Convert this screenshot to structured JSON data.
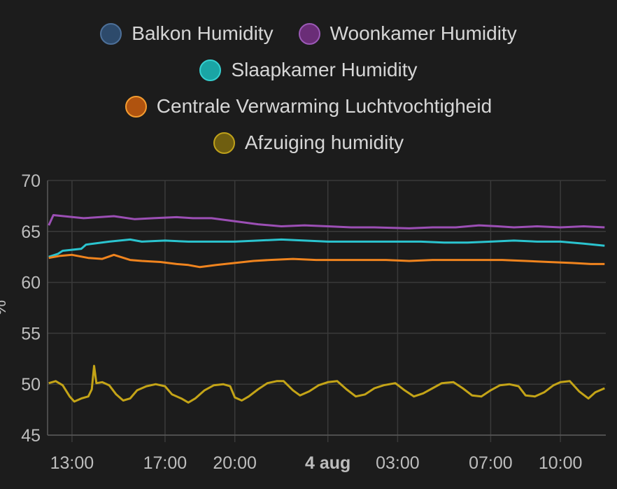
{
  "chart_data": {
    "type": "line",
    "ylabel": "%",
    "ylim": [
      45,
      70
    ],
    "y_ticks": [
      "45",
      "50",
      "55",
      "60",
      "65",
      "70"
    ],
    "x_ticks": [
      {
        "label": "13:00",
        "t": 13.0,
        "bold": false
      },
      {
        "label": "17:00",
        "t": 17.0,
        "bold": false
      },
      {
        "label": "20:00",
        "t": 20.0,
        "bold": false
      },
      {
        "label": "4 aug",
        "t": 24.0,
        "bold": true
      },
      {
        "label": "03:00",
        "t": 27.0,
        "bold": false
      },
      {
        "label": "07:00",
        "t": 31.0,
        "bold": false
      },
      {
        "label": "10:00",
        "t": 34.0,
        "bold": false
      }
    ],
    "x_range_hours": [
      11.95,
      35.95
    ],
    "grid": true,
    "legend_placement": "top-center",
    "series": [
      {
        "name": "Balkon Humidity",
        "color": "#2d4a6b",
        "border": "#4d7099",
        "line": false,
        "points": []
      },
      {
        "name": "Woonkamer Humidity",
        "color": "#6a2d77",
        "border": "#9b59b6",
        "line": "#9c4fb5",
        "points": [
          [
            12.0,
            65.6
          ],
          [
            12.2,
            66.6
          ],
          [
            13.5,
            66.3
          ],
          [
            14.8,
            66.5
          ],
          [
            15.7,
            66.2
          ],
          [
            16.5,
            66.3
          ],
          [
            17.5,
            66.4
          ],
          [
            18.2,
            66.3
          ],
          [
            19.0,
            66.3
          ],
          [
            20.0,
            66.0
          ],
          [
            21.0,
            65.7
          ],
          [
            22.0,
            65.5
          ],
          [
            23.0,
            65.6
          ],
          [
            24.0,
            65.5
          ],
          [
            25.0,
            65.4
          ],
          [
            26.0,
            65.4
          ],
          [
            27.5,
            65.3
          ],
          [
            28.5,
            65.4
          ],
          [
            29.5,
            65.4
          ],
          [
            30.5,
            65.6
          ],
          [
            31.3,
            65.5
          ],
          [
            32.0,
            65.4
          ],
          [
            33.0,
            65.5
          ],
          [
            34.0,
            65.4
          ],
          [
            35.0,
            65.5
          ],
          [
            35.9,
            65.4
          ]
        ]
      },
      {
        "name": "Slaapkamer Humidity",
        "color": "#1aa5a5",
        "border": "#35d0d0",
        "line": "#2bc4cf",
        "points": [
          [
            12.0,
            62.5
          ],
          [
            12.4,
            62.8
          ],
          [
            12.6,
            63.1
          ],
          [
            13.4,
            63.3
          ],
          [
            13.6,
            63.7
          ],
          [
            14.6,
            64.0
          ],
          [
            15.5,
            64.2
          ],
          [
            16.0,
            64.0
          ],
          [
            17.0,
            64.1
          ],
          [
            18.0,
            64.0
          ],
          [
            19.0,
            64.0
          ],
          [
            20.0,
            64.0
          ],
          [
            21.0,
            64.1
          ],
          [
            22.0,
            64.2
          ],
          [
            23.0,
            64.1
          ],
          [
            24.0,
            64.0
          ],
          [
            25.0,
            64.0
          ],
          [
            26.0,
            64.0
          ],
          [
            27.0,
            64.0
          ],
          [
            28.0,
            64.0
          ],
          [
            29.0,
            63.9
          ],
          [
            30.0,
            63.9
          ],
          [
            31.0,
            64.0
          ],
          [
            32.0,
            64.1
          ],
          [
            33.0,
            64.0
          ],
          [
            34.0,
            64.0
          ],
          [
            35.0,
            63.8
          ],
          [
            35.9,
            63.6
          ]
        ]
      },
      {
        "name": "Centrale Verwarming Luchtvochtigheid",
        "color": "#b0530f",
        "border": "#f39c30",
        "line": "#f0841e",
        "points": [
          [
            12.0,
            62.4
          ],
          [
            12.5,
            62.6
          ],
          [
            13.0,
            62.7
          ],
          [
            13.7,
            62.4
          ],
          [
            14.3,
            62.3
          ],
          [
            14.8,
            62.7
          ],
          [
            15.5,
            62.2
          ],
          [
            16.0,
            62.1
          ],
          [
            16.8,
            62.0
          ],
          [
            17.5,
            61.8
          ],
          [
            18.0,
            61.7
          ],
          [
            18.5,
            61.5
          ],
          [
            19.2,
            61.7
          ],
          [
            20.0,
            61.9
          ],
          [
            20.8,
            62.1
          ],
          [
            21.5,
            62.2
          ],
          [
            22.5,
            62.3
          ],
          [
            23.5,
            62.2
          ],
          [
            24.5,
            62.2
          ],
          [
            25.5,
            62.2
          ],
          [
            26.5,
            62.2
          ],
          [
            27.5,
            62.1
          ],
          [
            28.5,
            62.2
          ],
          [
            29.5,
            62.2
          ],
          [
            30.5,
            62.2
          ],
          [
            31.5,
            62.2
          ],
          [
            32.5,
            62.1
          ],
          [
            33.5,
            62.0
          ],
          [
            34.5,
            61.9
          ],
          [
            35.3,
            61.8
          ],
          [
            35.9,
            61.8
          ]
        ]
      },
      {
        "name": "Afzuiging humidity",
        "color": "#6f5e10",
        "border": "#bfa11a",
        "line": "#c4a417",
        "points": [
          [
            12.0,
            50.1
          ],
          [
            12.3,
            50.3
          ],
          [
            12.6,
            49.9
          ],
          [
            12.9,
            48.8
          ],
          [
            13.1,
            48.3
          ],
          [
            13.4,
            48.6
          ],
          [
            13.7,
            48.8
          ],
          [
            13.85,
            49.5
          ],
          [
            13.95,
            51.8
          ],
          [
            14.05,
            50.1
          ],
          [
            14.3,
            50.2
          ],
          [
            14.6,
            49.9
          ],
          [
            14.9,
            49.0
          ],
          [
            15.2,
            48.4
          ],
          [
            15.5,
            48.6
          ],
          [
            15.8,
            49.4
          ],
          [
            16.2,
            49.8
          ],
          [
            16.6,
            50.0
          ],
          [
            17.0,
            49.8
          ],
          [
            17.3,
            49.0
          ],
          [
            17.7,
            48.6
          ],
          [
            18.0,
            48.2
          ],
          [
            18.3,
            48.6
          ],
          [
            18.7,
            49.4
          ],
          [
            19.1,
            49.9
          ],
          [
            19.5,
            50.0
          ],
          [
            19.8,
            49.8
          ],
          [
            20.0,
            48.7
          ],
          [
            20.3,
            48.4
          ],
          [
            20.6,
            48.8
          ],
          [
            21.0,
            49.5
          ],
          [
            21.4,
            50.1
          ],
          [
            21.8,
            50.3
          ],
          [
            22.1,
            50.3
          ],
          [
            22.5,
            49.4
          ],
          [
            22.8,
            48.9
          ],
          [
            23.2,
            49.3
          ],
          [
            23.6,
            49.9
          ],
          [
            24.0,
            50.2
          ],
          [
            24.4,
            50.3
          ],
          [
            24.8,
            49.5
          ],
          [
            25.2,
            48.8
          ],
          [
            25.6,
            49.0
          ],
          [
            26.0,
            49.6
          ],
          [
            26.4,
            49.9
          ],
          [
            26.9,
            50.1
          ],
          [
            27.3,
            49.4
          ],
          [
            27.7,
            48.8
          ],
          [
            28.1,
            49.1
          ],
          [
            28.5,
            49.6
          ],
          [
            28.9,
            50.1
          ],
          [
            29.4,
            50.2
          ],
          [
            29.8,
            49.6
          ],
          [
            30.2,
            48.9
          ],
          [
            30.6,
            48.8
          ],
          [
            31.0,
            49.4
          ],
          [
            31.4,
            49.9
          ],
          [
            31.8,
            50.0
          ],
          [
            32.2,
            49.8
          ],
          [
            32.5,
            48.9
          ],
          [
            32.9,
            48.8
          ],
          [
            33.3,
            49.2
          ],
          [
            33.7,
            49.9
          ],
          [
            34.0,
            50.2
          ],
          [
            34.4,
            50.3
          ],
          [
            34.8,
            49.3
          ],
          [
            35.2,
            48.6
          ],
          [
            35.5,
            49.2
          ],
          [
            35.9,
            49.6
          ]
        ]
      }
    ]
  }
}
